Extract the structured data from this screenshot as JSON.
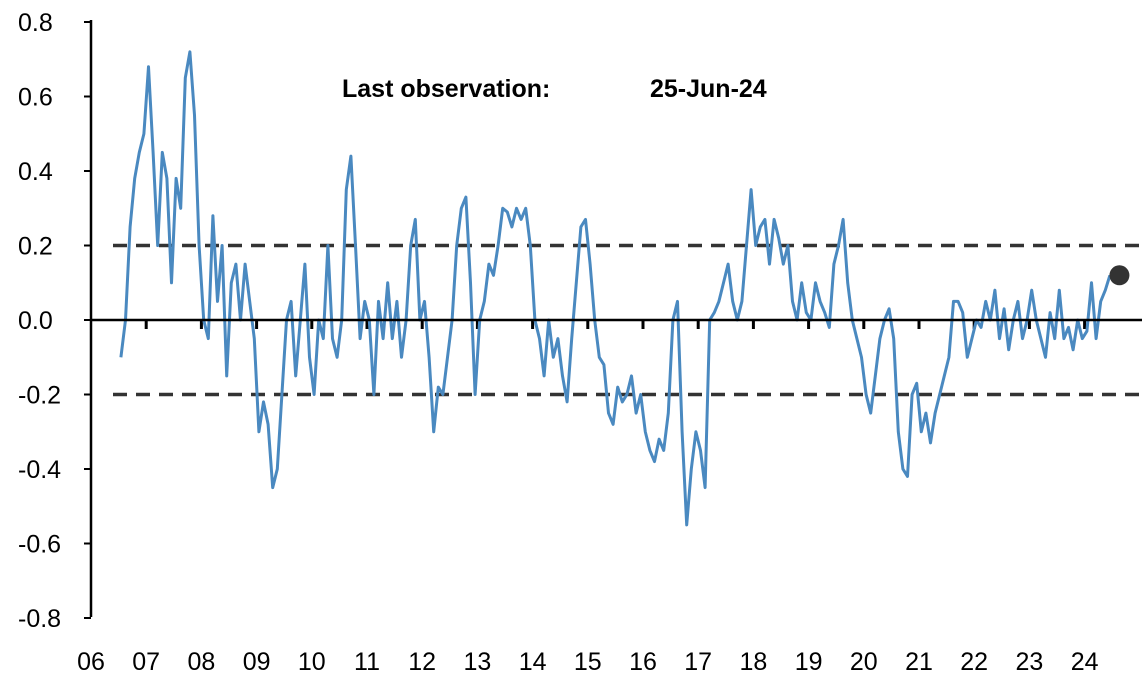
{
  "chart_data": {
    "type": "line",
    "title": "",
    "xlabel": "",
    "ylabel": "",
    "ylim": [
      -0.8,
      0.8
    ],
    "yticks": [
      "0.8",
      "0.6",
      "0.4",
      "0.2",
      "0.0",
      "-0.2",
      "-0.4",
      "-0.6",
      "-0.8"
    ],
    "ytick_values": [
      0.8,
      0.6,
      0.4,
      0.2,
      0.0,
      -0.2,
      -0.4,
      -0.6,
      -0.8
    ],
    "xlim": [
      2006,
      2025
    ],
    "xticks": [
      "06",
      "07",
      "08",
      "09",
      "10",
      "11",
      "12",
      "13",
      "14",
      "15",
      "16",
      "17",
      "18",
      "19",
      "20",
      "21",
      "22",
      "23",
      "24"
    ],
    "grid": false,
    "reference_lines": [
      0.2,
      -0.2
    ],
    "annotation": {
      "label": "Last observation:",
      "value": "25-Jun-24"
    },
    "last_point": {
      "date": "2024-06-25",
      "value": 0.12
    },
    "colors": {
      "line": "#4a89c0",
      "reference": "#333333",
      "marker": "#333333",
      "axis": "#000000"
    },
    "series": [
      {
        "frequency": "monthly",
        "start": "2006-07",
        "values_by_year": {
          "2006": [
            -0.1,
            0.0,
            0.25,
            0.38,
            0.45,
            0.5
          ],
          "2007": [
            0.68,
            0.45,
            0.2,
            0.45,
            0.38,
            0.1,
            0.38,
            0.3,
            0.65,
            0.72,
            0.55,
            0.2
          ],
          "2008": [
            0.0,
            -0.05,
            0.28,
            0.05,
            0.2,
            -0.15,
            0.1,
            0.15,
            0.0,
            0.15,
            0.05,
            -0.05
          ],
          "2009": [
            -0.3,
            -0.22,
            -0.28,
            -0.45,
            -0.4,
            -0.2,
            0.0,
            0.05,
            -0.15,
            0.0,
            0.15,
            -0.1
          ],
          "2010": [
            -0.2,
            0.0,
            -0.05,
            0.2,
            -0.05,
            -0.1,
            0.0,
            0.35,
            0.44,
            0.2,
            -0.05,
            0.05
          ],
          "2011": [
            0.0,
            -0.2,
            0.05,
            -0.05,
            0.1,
            -0.05,
            0.05,
            -0.1,
            0.0,
            0.2,
            0.27,
            0.0
          ],
          "2012": [
            0.05,
            -0.1,
            -0.3,
            -0.18,
            -0.2,
            -0.1,
            0.0,
            0.2,
            0.3,
            0.33,
            0.1,
            -0.2
          ],
          "2013": [
            0.0,
            0.05,
            0.15,
            0.12,
            0.2,
            0.3,
            0.29,
            0.25,
            0.3,
            0.27,
            0.3,
            0.2
          ],
          "2014": [
            0.0,
            -0.05,
            -0.15,
            0.0,
            -0.1,
            -0.05,
            -0.15,
            -0.22,
            -0.05,
            0.1,
            0.25,
            0.27
          ],
          "2015": [
            0.15,
            0.0,
            -0.1,
            -0.12,
            -0.25,
            -0.28,
            -0.18,
            -0.22,
            -0.2,
            -0.15,
            -0.25,
            -0.2
          ],
          "2016": [
            -0.3,
            -0.35,
            -0.38,
            -0.32,
            -0.35,
            -0.25,
            0.0,
            0.05,
            -0.3,
            -0.55,
            -0.4,
            -0.3
          ],
          "2017": [
            -0.35,
            -0.45,
            0.0,
            0.02,
            0.05,
            0.1,
            0.15,
            0.05,
            0.0,
            0.05,
            0.2,
            0.35
          ],
          "2018": [
            0.2,
            0.25,
            0.27,
            0.15,
            0.27,
            0.22,
            0.15,
            0.2,
            0.05,
            0.0,
            0.1,
            0.02
          ],
          "2019": [
            0.0,
            0.1,
            0.05,
            0.02,
            -0.02,
            0.15,
            0.2,
            0.27,
            0.1,
            0.0,
            -0.05,
            -0.1
          ],
          "2020": [
            -0.2,
            -0.25,
            -0.15,
            -0.05,
            0.0,
            0.03,
            -0.05,
            -0.3,
            -0.4,
            -0.42,
            -0.2,
            -0.17
          ],
          "2021": [
            -0.3,
            -0.25,
            -0.33,
            -0.25,
            -0.2,
            -0.15,
            -0.1,
            0.05,
            0.05,
            0.02,
            -0.1,
            -0.05
          ],
          "2022": [
            0.0,
            -0.02,
            0.05,
            0.0,
            0.08,
            -0.05,
            0.03,
            -0.08,
            0.0,
            0.05,
            -0.05,
            0.0
          ],
          "2023": [
            0.08,
            0.0,
            -0.05,
            -0.1,
            0.02,
            -0.05,
            0.08,
            -0.05,
            -0.02,
            -0.08,
            0.0,
            -0.05
          ],
          "2024": [
            -0.03,
            0.1,
            -0.05,
            0.05,
            0.08,
            0.12
          ]
        }
      }
    ]
  }
}
